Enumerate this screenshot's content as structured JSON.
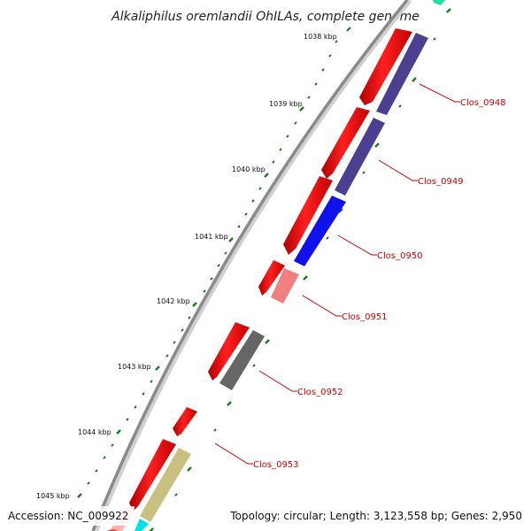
{
  "title": "Alkaliphilus oremlandii OhILAs, complete genome",
  "footer": {
    "accession": "Accession: NC_009922",
    "summary": "Topology: circular; Length: 3,123,558 bp; Genes: 2,950"
  },
  "kbp_labels": [
    "1038 kbp",
    "1039 kbp",
    "1040 kbp",
    "1041 kbp",
    "1042 kbp",
    "1043 kbp",
    "1044 kbp",
    "1045 kbp"
  ],
  "gene_labels": [
    "Clos_0948",
    "Clos_0949",
    "Clos_0950",
    "Clos_0951",
    "Clos_0952",
    "Clos_0953"
  ],
  "colors": {
    "backbone": "#8a8a8a",
    "forward_feature": "#ff0000",
    "gene_0948": "#4b3f8f",
    "gene_0949": "#4b3f8f",
    "gene_0950": "#1111ee",
    "gene_0951": "#f08080",
    "gene_0952": "#666666",
    "olive_feature": "#c8c080",
    "cyan_feature": "#00e0e0",
    "teal_feature": "#22e0a0",
    "pink_feature": "#ffb0b0",
    "tick": "#1a7a1a",
    "label_line": "#cc0000"
  }
}
